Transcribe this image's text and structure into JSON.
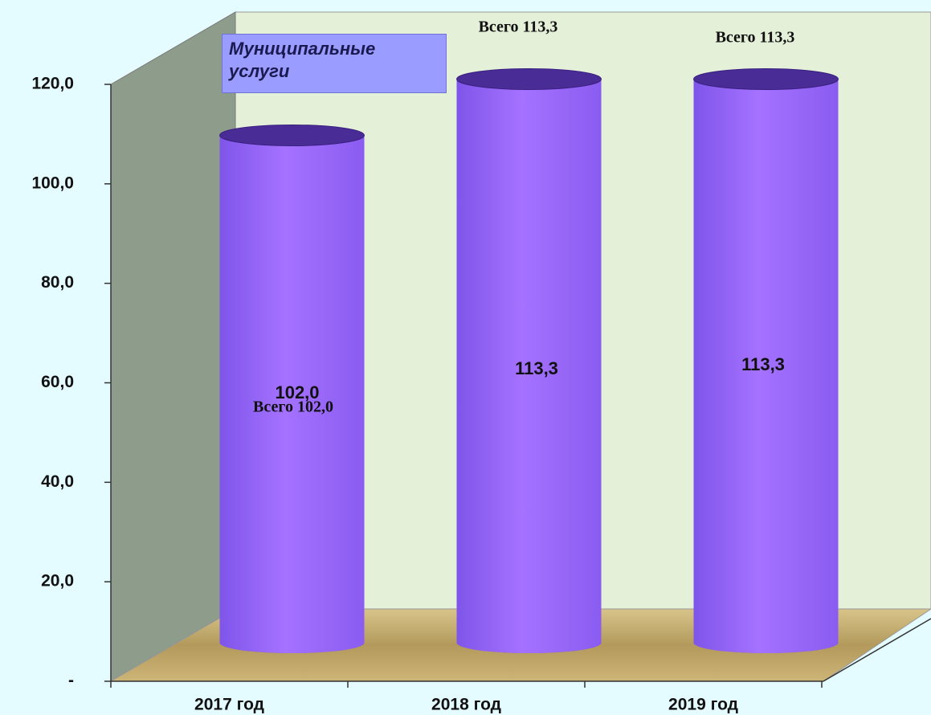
{
  "chart_data": {
    "type": "bar",
    "legend": "Муниципальные услуги",
    "categories": [
      "2017 год",
      "2018 год",
      "2019 год"
    ],
    "values": [
      102.0,
      113.3,
      113.3
    ],
    "value_labels": [
      "102,0",
      "113,3",
      "113,3"
    ],
    "annotations": [
      "Всего 102,0",
      "Всего 113,3",
      "Всего 113,3"
    ],
    "color": "#9b66ff",
    "ylim": [
      0,
      120
    ],
    "yticks": [
      {
        "value": 0,
        "label": "-"
      },
      {
        "value": 20,
        "label": "20,0"
      },
      {
        "value": 40,
        "label": "40,0"
      },
      {
        "value": 60,
        "label": "60,0"
      },
      {
        "value": 80,
        "label": "80,0"
      },
      {
        "value": 100,
        "label": "100,0"
      },
      {
        "value": 120,
        "label": "120,0"
      }
    ]
  }
}
